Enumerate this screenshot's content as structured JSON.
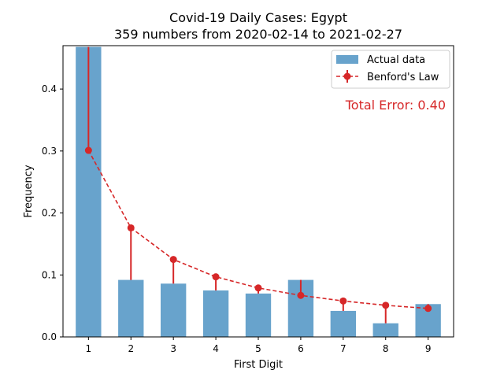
{
  "chart_data": {
    "type": "bar",
    "title_line1": "Covid-19 Daily Cases: Egypt",
    "title_line2": "359 numbers from 2020-02-14 to 2021-02-27",
    "xlabel": "First Digit",
    "ylabel": "Frequency",
    "categories": [
      "1",
      "2",
      "3",
      "4",
      "5",
      "6",
      "7",
      "8",
      "9"
    ],
    "ylim": [
      0,
      0.47
    ],
    "yticks": [
      "0.0",
      "0.1",
      "0.2",
      "0.3",
      "0.4"
    ],
    "grid": false,
    "legend_position": "top-right",
    "series": [
      {
        "name": "Actual data",
        "kind": "bar",
        "color": "#5b9bc8",
        "values": [
          0.468,
          0.092,
          0.086,
          0.075,
          0.07,
          0.092,
          0.042,
          0.022,
          0.053
        ]
      },
      {
        "name": "Benford's Law",
        "kind": "line-dashed-markers",
        "color": "#d62728",
        "values": [
          0.301,
          0.176,
          0.125,
          0.097,
          0.079,
          0.067,
          0.058,
          0.051,
          0.046
        ]
      }
    ],
    "annotation": "Total Error: 0.40",
    "annotation_color": "#d62728"
  }
}
